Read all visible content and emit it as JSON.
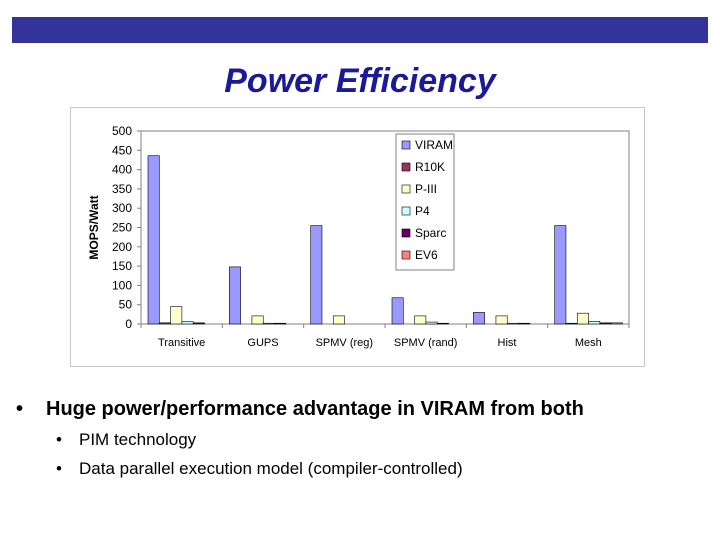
{
  "slide": {
    "title": "Power Efficiency",
    "bullet_main": "Huge power/performance advantage in VIRAM from both",
    "sub_bullets": [
      "PIM technology",
      "Data parallel execution model (compiler-controlled)"
    ],
    "bullet_char": "•",
    "top_bar_color": "#333399"
  },
  "chart_data": {
    "type": "bar",
    "title": "",
    "xlabel": "",
    "ylabel": "MOPS/Watt",
    "ylim": [
      0,
      500
    ],
    "yticks": [
      0,
      50,
      100,
      150,
      200,
      250,
      300,
      350,
      400,
      450,
      500
    ],
    "grid": false,
    "legend_position": "top-right",
    "categories": [
      "Transitive",
      "GUPS",
      "SPMV (reg)",
      "SPMV (rand)",
      "Hist",
      "Mesh"
    ],
    "series": [
      {
        "name": "VIRAM",
        "color": "#9999ff",
        "values": [
          436,
          148,
          255,
          68,
          30,
          255
        ]
      },
      {
        "name": "R10K",
        "color": "#993366",
        "values": [
          3,
          null,
          null,
          null,
          null,
          2
        ]
      },
      {
        "name": "P-III",
        "color": "#ffffcc",
        "values": [
          45,
          21,
          21,
          21,
          21,
          28
        ]
      },
      {
        "name": "P4",
        "color": "#ccffff",
        "values": [
          6,
          2,
          null,
          5,
          2,
          7
        ]
      },
      {
        "name": "Sparc",
        "color": "#660066",
        "values": [
          3,
          2,
          null,
          2,
          2,
          3
        ]
      },
      {
        "name": "EV6",
        "color": "#ff8080",
        "values": [
          null,
          null,
          null,
          null,
          null,
          3
        ]
      }
    ]
  }
}
